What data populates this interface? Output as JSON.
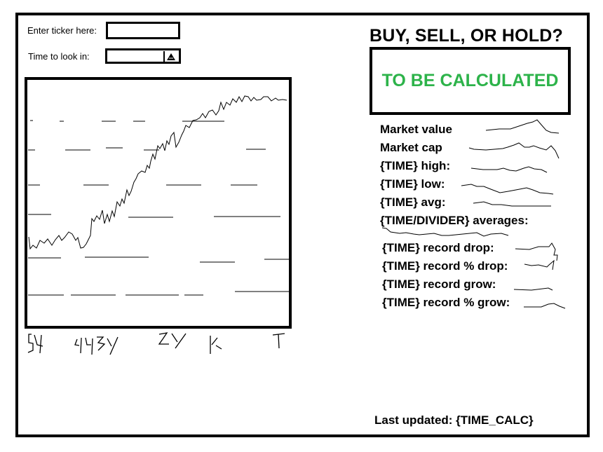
{
  "inputs": {
    "ticker_label": "Enter ticker here:",
    "ticker_value": "",
    "time_label": "Time to look in:",
    "time_value": ""
  },
  "chart": {
    "x_tick_labels": [
      "5Y",
      "4Y 3Y",
      "2Y",
      "1Y",
      "T"
    ]
  },
  "verdict": {
    "question": "BUY, SELL, OR HOLD?",
    "result": "TO BE CALCULATED",
    "result_color": "#2db34a"
  },
  "stats": [
    {
      "label": "Market value"
    },
    {
      "label": "Market cap"
    },
    {
      "label": "{TIME} high:"
    },
    {
      "label": "{TIME} low:"
    },
    {
      "label": "{TIME} avg:"
    },
    {
      "label": "{TIME/DIVIDER} averages:"
    },
    {
      "label": "{TIME} record drop:"
    },
    {
      "label": "{TIME} record % drop:"
    },
    {
      "label": "{TIME} record grow:"
    },
    {
      "label": "{TIME} record % grow:"
    }
  ],
  "footer": {
    "last_updated": "Last updated: {TIME_CALC}"
  }
}
